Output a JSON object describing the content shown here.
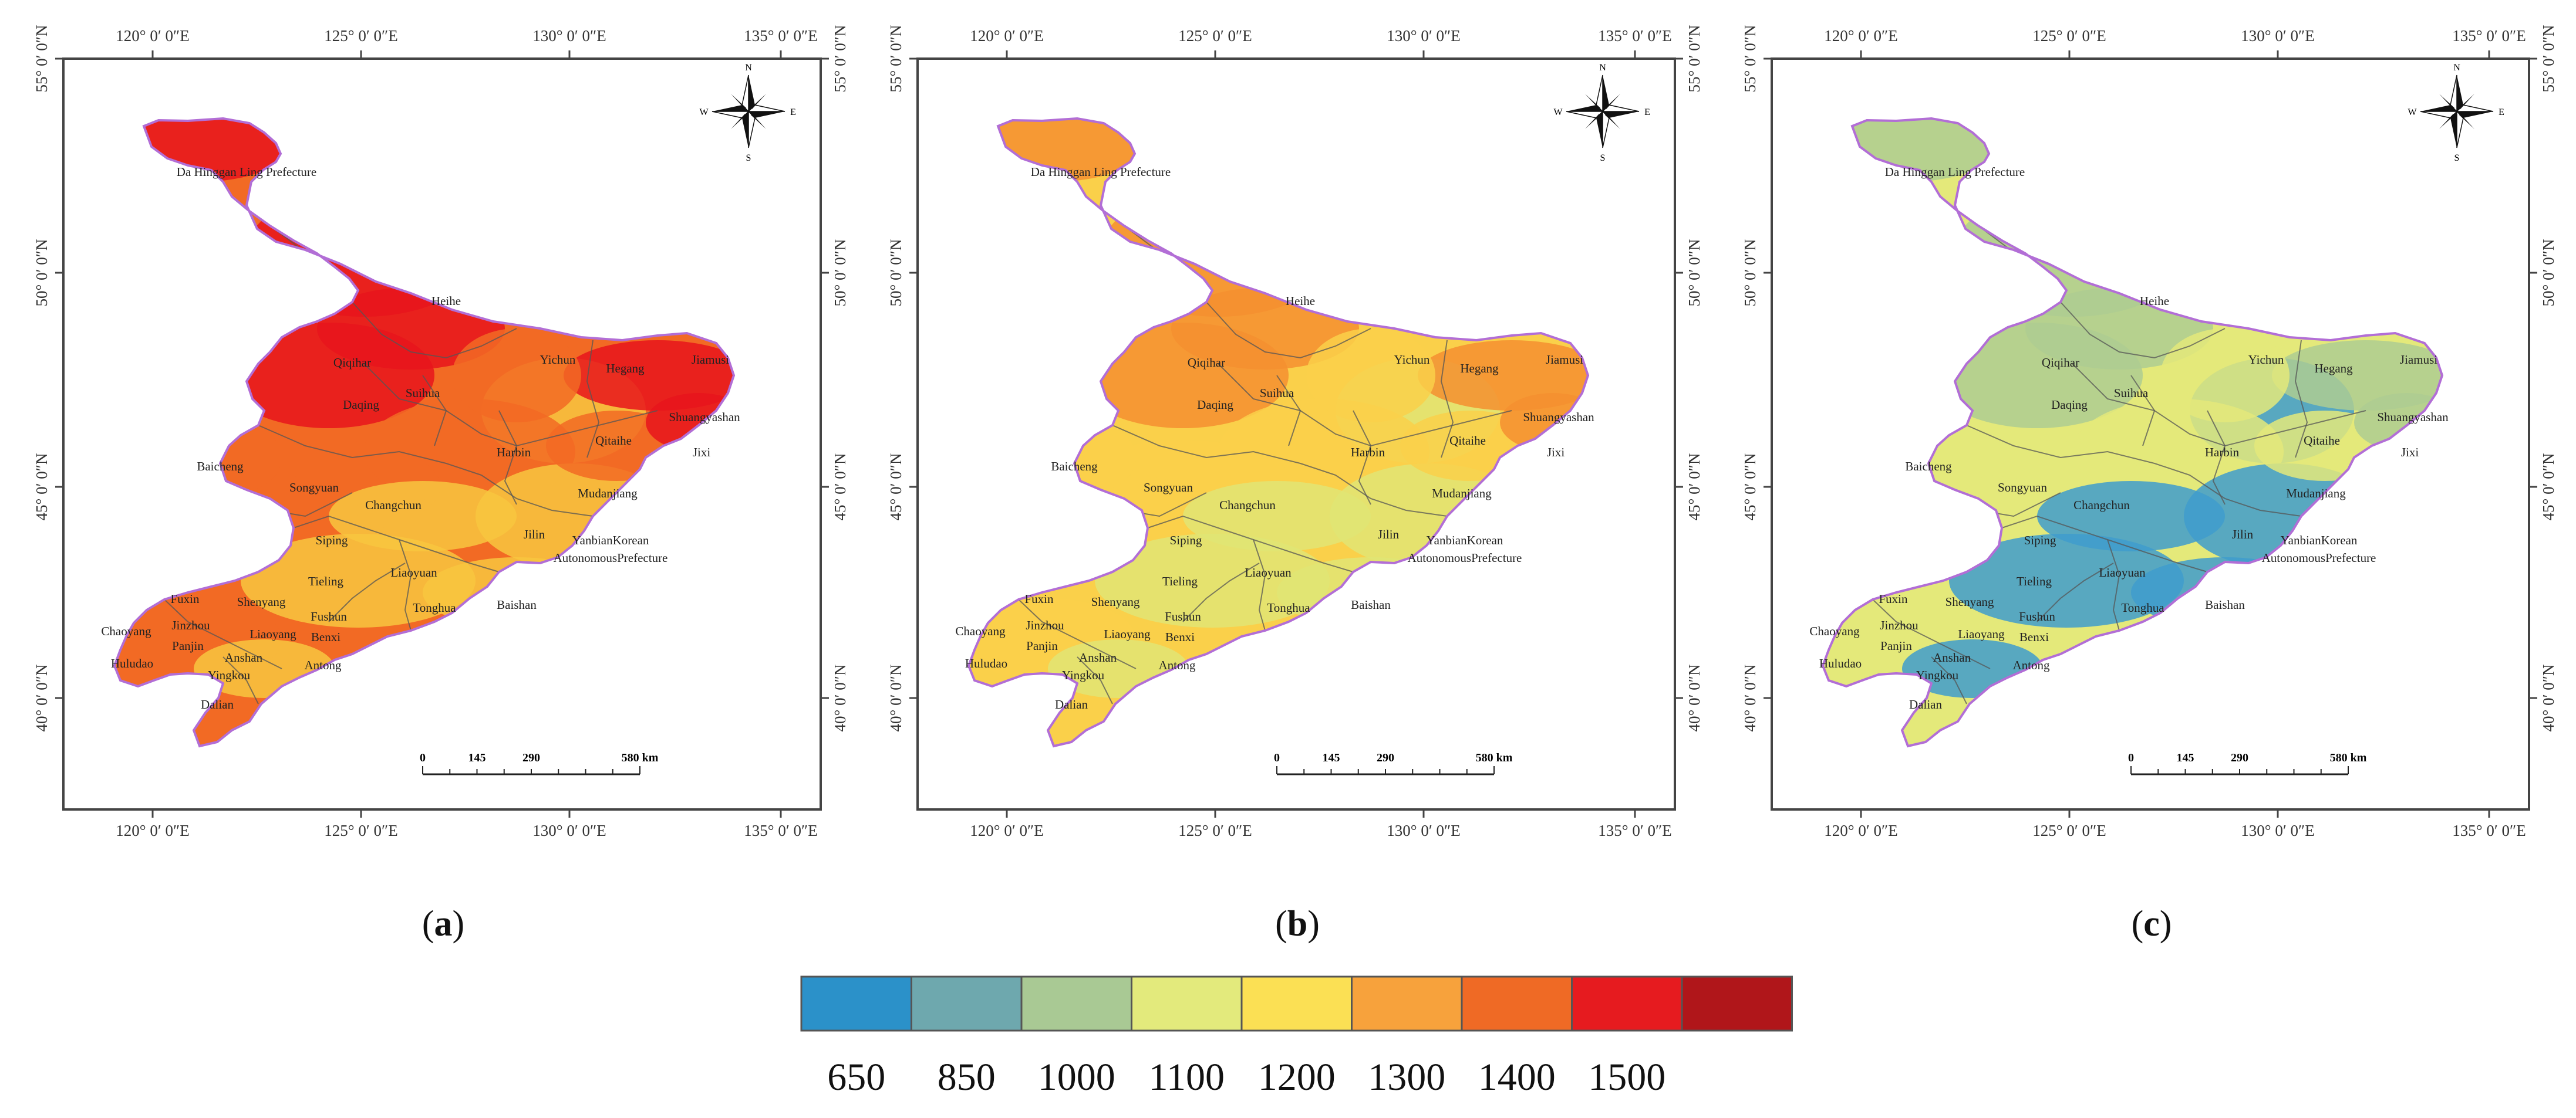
{
  "axes": {
    "lon_labels": [
      "120° 0′ 0″E",
      "125° 0′ 0″E",
      "130° 0′ 0″E",
      "135° 0′ 0″E"
    ],
    "lat_labels": [
      "55° 0′ 0″N",
      "50° 0′ 0″N",
      "45° 0′ 0″N",
      "40° 0′ 0″N"
    ]
  },
  "compass": {
    "north": "N",
    "south": "S",
    "east": "E",
    "west": "W"
  },
  "scale_bar": {
    "ticks": [
      "0",
      "145",
      "290",
      "580 km"
    ]
  },
  "cities": [
    "Da Hinggan Ling Prefecture",
    "Heihe",
    "Qiqihar",
    "Yichun",
    "Hegang",
    "Jiamusi",
    "Suihua",
    "Daqing",
    "Shuangyashan",
    "Qitaihe",
    "Jixi",
    "Harbin",
    "Baicheng",
    "Songyuan",
    "Mudanjiang",
    "Changchun",
    "Jilin",
    "Siping",
    "YanbianKorean",
    "AutonomousPrefecture",
    "Liaoyuan",
    "Tieling",
    "Fuxin",
    "Shenyang",
    "Fushun",
    "Tonghua",
    "Baishan",
    "Chaoyang",
    "Jinzhou",
    "Liaoyang",
    "Benxi",
    "Panjin",
    "Huludao",
    "Anshan",
    "Yingkou",
    "Antong",
    "Dalian"
  ],
  "panels": [
    {
      "id": "a",
      "caption_prefix": "(",
      "caption_letter": "a",
      "caption_suffix": ")",
      "dominant_color": "#e8141c",
      "mid_color": "#f26a24",
      "low_color": "#f8c640"
    },
    {
      "id": "b",
      "caption_prefix": "(",
      "caption_letter": "b",
      "caption_suffix": ")",
      "dominant_color": "#f58f30",
      "mid_color": "#fad04a",
      "low_color": "#e0e574"
    },
    {
      "id": "c",
      "caption_prefix": "(",
      "caption_letter": "c",
      "caption_suffix": ")",
      "dominant_color": "#aecc92",
      "mid_color": "#e4e97a",
      "low_color": "#3f9ccc"
    }
  ],
  "legend": {
    "colors": [
      "#2b91c9",
      "#6ea8ae",
      "#a9c994",
      "#e3ea7c",
      "#fbe054",
      "#f7a23c",
      "#ef6a25",
      "#e61b1f",
      "#b0161a"
    ],
    "labels": [
      "650",
      "850",
      "1000",
      "1100",
      "1200",
      "1300",
      "1400",
      "1500"
    ]
  }
}
